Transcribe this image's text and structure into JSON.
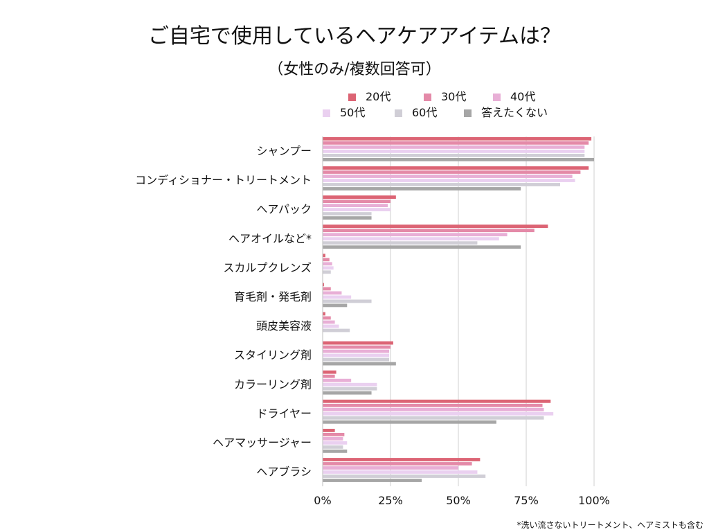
{
  "title": "ご自宅で使用しているヘアケアアイテムは？",
  "subtitle": "（女性のみ/複数回答可）",
  "footnote": "*洗い流さないトリートメント、ヘアミストも含む",
  "chart_data": {
    "type": "bar",
    "orientation": "horizontal",
    "categories": [
      "シャンプー",
      "コンディショナー・トリートメント",
      "ヘアパック",
      "ヘアオイルなど*",
      "スカルプクレンズ",
      "育毛剤・発毛剤",
      "頭皮美容液",
      "スタイリング剤",
      "カラーリング剤",
      "ドライヤー",
      "ヘアマッサージャー",
      "ヘアブラシ"
    ],
    "series": [
      {
        "name": "20代",
        "color": "#dc6474",
        "values": [
          99,
          98,
          27,
          83,
          1,
          0.5,
          1,
          26,
          5,
          84,
          4.5,
          58
        ]
      },
      {
        "name": "30代",
        "color": "#e48aa8",
        "values": [
          98,
          95,
          25,
          78,
          2.5,
          3,
          3,
          25,
          4.5,
          81,
          8,
          55
        ]
      },
      {
        "name": "40代",
        "color": "#e8afd6",
        "values": [
          96.5,
          92,
          24,
          68,
          3.5,
          7,
          4.5,
          24.5,
          10.5,
          81.5,
          7.5,
          50
        ]
      },
      {
        "name": "50代",
        "color": "#ead0f0",
        "values": [
          96.5,
          93,
          25,
          65,
          4,
          10.5,
          6,
          24.5,
          20,
          85,
          9,
          57
        ]
      },
      {
        "name": "60代",
        "color": "#d0ced6",
        "values": [
          96.5,
          87.5,
          18,
          57,
          3,
          18,
          10,
          24.5,
          20,
          81.5,
          7.5,
          60
        ]
      },
      {
        "name": "答えたくない",
        "color": "#a6a6a6",
        "values": [
          100,
          73,
          18,
          73,
          0,
          9,
          0,
          27,
          18,
          64,
          9,
          36.5
        ]
      }
    ],
    "xlim": [
      0,
      100
    ],
    "x_ticks": [
      "0%",
      "25%",
      "50%",
      "75%",
      "100%"
    ],
    "x_tick_values": [
      0,
      25,
      50,
      75,
      100
    ],
    "grid": "vertical",
    "legend_position": "top"
  }
}
